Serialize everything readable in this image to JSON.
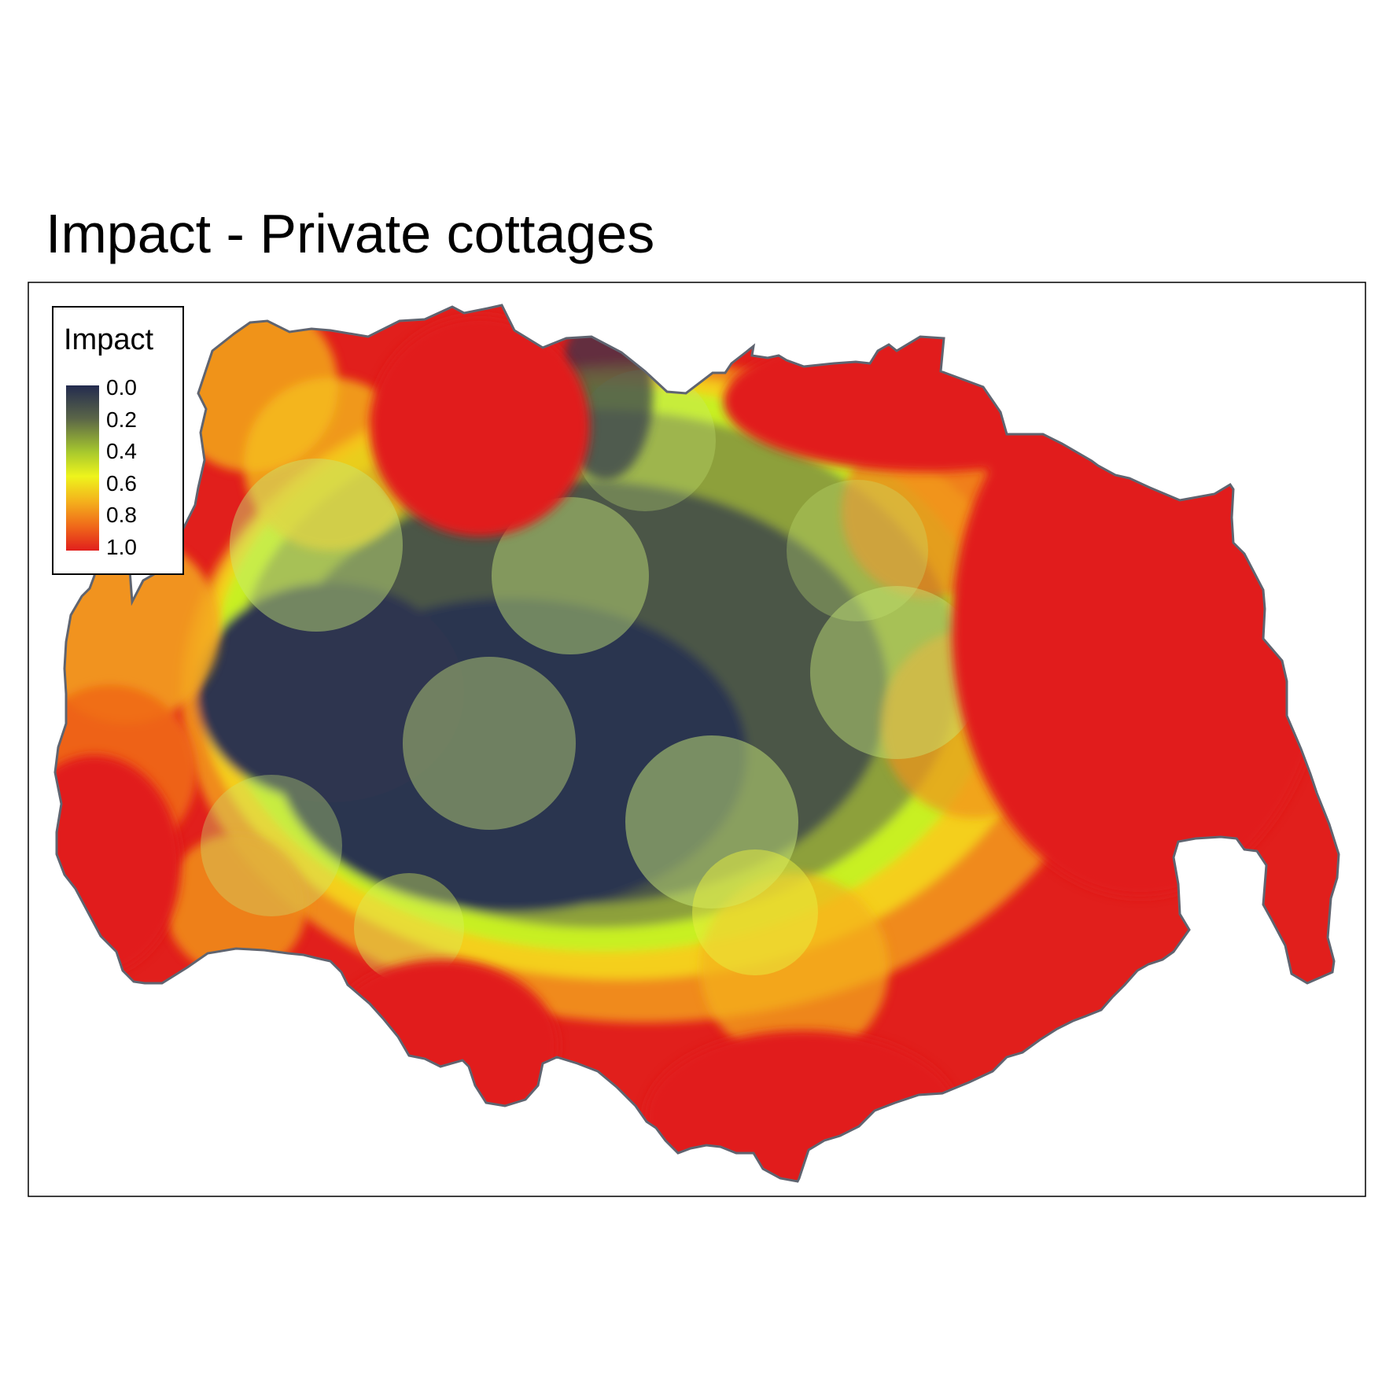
{
  "title": "Impact - Private cottages",
  "legend": {
    "title": "Impact",
    "labels": [
      "0.0",
      "0.2",
      "0.4",
      "0.6",
      "0.8",
      "1.0"
    ],
    "colors": [
      "#232b4f",
      "#6b7a4a",
      "#b7df2a",
      "#f3c81a",
      "#f07a1a",
      "#e11f1c"
    ]
  },
  "colors": {
    "low": "#232b4f",
    "mid_low": "#6b7a4a",
    "mid": "#c8f023",
    "mid_high": "#f4c41c",
    "high": "#f07a1a",
    "max": "#e11f1c",
    "outline": "#5f6470"
  }
}
